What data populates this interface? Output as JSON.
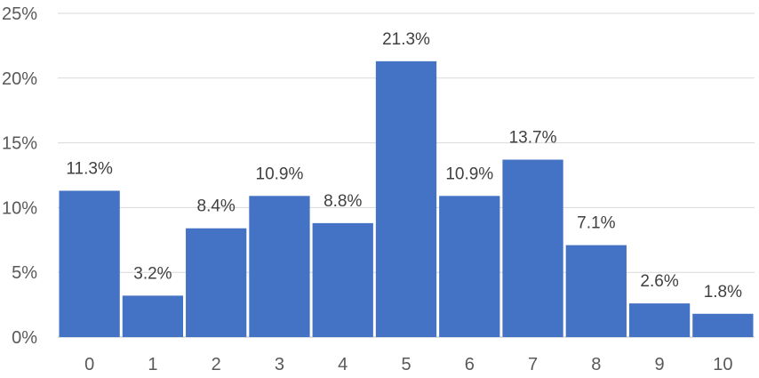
{
  "chart_data": {
    "type": "bar",
    "categories": [
      "0",
      "1",
      "2",
      "3",
      "4",
      "5",
      "6",
      "7",
      "8",
      "9",
      "10"
    ],
    "values": [
      11.3,
      3.2,
      8.4,
      10.9,
      8.8,
      21.3,
      10.9,
      13.7,
      7.1,
      2.6,
      1.8
    ],
    "data_labels": [
      "11.3%",
      "3.2%",
      "8.4%",
      "10.9%",
      "8.8%",
      "21.3%",
      "10.9%",
      "13.7%",
      "7.1%",
      "2.6%",
      "1.8%"
    ],
    "y_ticks": [
      0,
      5,
      10,
      15,
      20,
      25
    ],
    "y_tick_labels": [
      "0%",
      "5%",
      "10%",
      "15%",
      "20%",
      "25%"
    ],
    "ylim": [
      0,
      25
    ],
    "grid": true,
    "legend": "none",
    "title": "",
    "xlabel": "",
    "ylabel": "",
    "bar_color": "#4472c4"
  }
}
